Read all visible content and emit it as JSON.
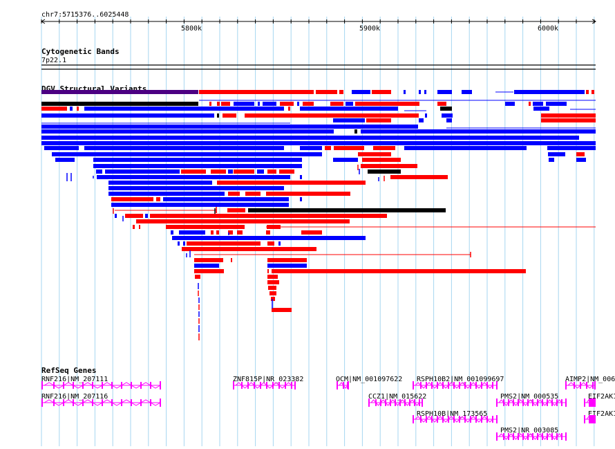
{
  "ruler": {
    "range_label": "chr7:5715376..6025448",
    "ticks": [
      {
        "label": "5800k"
      },
      {
        "label": "5900k"
      },
      {
        "label": "6000k"
      }
    ]
  },
  "tracks": {
    "cytoband": {
      "title": "Cytogenetic Bands",
      "band_label": "7p22.1"
    },
    "dgv": {
      "title": "DGV Structural Variants"
    },
    "refseq": {
      "title": "RefSeq Genes",
      "genes": [
        {
          "label": "RNF216|NM_207111"
        },
        {
          "label": "RNF216|NM_207116"
        },
        {
          "label": "ZNF815P|NR_023382"
        },
        {
          "label": "OCM|NM_001097622"
        },
        {
          "label": "CCZ1|NM_015622"
        },
        {
          "label": "RSPH10B2|NM_001099697"
        },
        {
          "label": "RSPH10B|NM_173565"
        },
        {
          "label": "PMS2|NM_000535"
        },
        {
          "label": "PMS2|NR_003085"
        },
        {
          "label": "AIMP2|NM_006"
        },
        {
          "label": "EIF2AK1"
        },
        {
          "label": "EIF2AK1"
        }
      ]
    }
  },
  "colors": {
    "gain": "#ff0000",
    "loss": "#0000ff",
    "both": "#000000",
    "inversion": "#4b0082",
    "gene": "#ff00ff",
    "grid": "#a6d6f0"
  }
}
